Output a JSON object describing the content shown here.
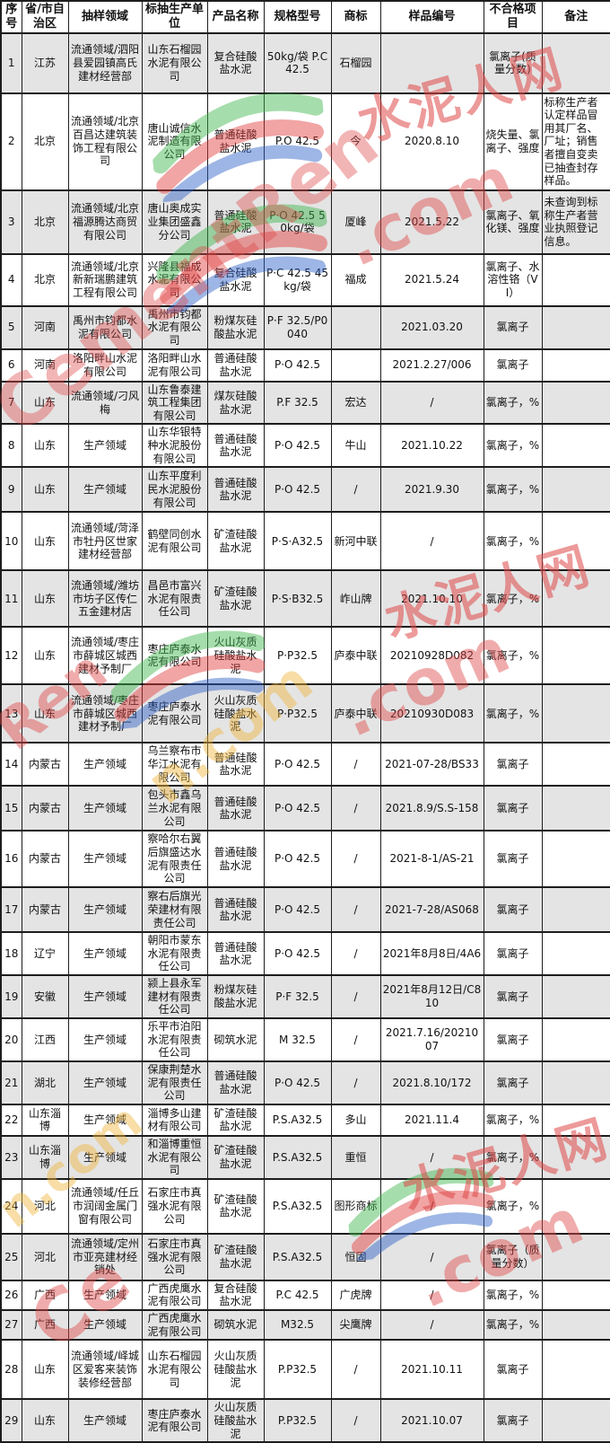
{
  "table": {
    "columns": [
      "序号",
      "省/市自治区",
      "抽样领域",
      "标抽生产单位",
      "产品名称",
      "规格型号",
      "商标",
      "样品编号",
      "不合格项目",
      "备注"
    ],
    "rows": [
      {
        "no": "1",
        "province": "江苏",
        "field": "流通领域/泗阳县爱园镇高氏建材经营部",
        "producer": "山东石榴园水泥有限公司",
        "product": "复合硅酸盐水泥",
        "spec": "50kg/袋 P.C42.5",
        "brand": "石榴园",
        "sample": "",
        "defect": "氯离子(质量分数)",
        "note": ""
      },
      {
        "no": "2",
        "province": "北京",
        "field": "流通领域/北京百昌达建筑装饰工程有限公司",
        "producer": "唐山诚信水泥制造有限公司",
        "product": "普通硅酸盐水泥",
        "spec": "P.O 42.5",
        "brand": "今",
        "sample": "2020.8.10",
        "defect": "烧失量、氯离子、强度",
        "note": "标称生产者认定样品冒用其厂名、厂址；销售者擅自变卖已抽查封存样品。"
      },
      {
        "no": "3",
        "province": "北京",
        "field": "流通领域/北京福源腾达商贸有限公司",
        "producer": "唐山奥成实业集团盛鑫分公司",
        "product": "普通硅酸盐水泥",
        "spec": "P·O 42.5 50kg/袋",
        "brand": "厦峰",
        "sample": "2021.5.22",
        "defect": "氯离子、氧化镁、强度",
        "note": "未查询到标称生产者营业执照登记信息。"
      },
      {
        "no": "4",
        "province": "北京",
        "field": "流通领域/北京新新瑞鹏建筑工程有限公司",
        "producer": "兴隆县福成水泥有限公司",
        "product": "复合硅酸盐水泥",
        "spec": "P·C 42.5 45kg/袋",
        "brand": "福成",
        "sample": "2021.5.24",
        "defect": "氯离子、水溶性铬（VI）",
        "note": ""
      },
      {
        "no": "5",
        "province": "河南",
        "field": "禹州市钧都水泥有限公司",
        "producer": "禹州市钧都水泥有限公司",
        "product": "粉煤灰硅酸盐水泥",
        "spec": "P·F 32.5/P0040",
        "brand": "",
        "sample": "2021.03.20",
        "defect": "氯离子",
        "note": ""
      },
      {
        "no": "6",
        "province": "河南",
        "field": "洛阳畔山水泥有限公司",
        "producer": "洛阳畔山水泥有限公司",
        "product": "普通硅酸盐水泥",
        "spec": "P·O 42.5",
        "brand": "",
        "sample": "2021.2.27/006",
        "defect": "氯离子",
        "note": ""
      },
      {
        "no": "7",
        "province": "山东",
        "field": "流通领域/刁风梅",
        "producer": "山东鲁泰建筑工程集团有限公司",
        "product": "煤灰硅酸盐水泥",
        "spec": "P.F 32.5",
        "brand": "宏达",
        "sample": "/",
        "defect": "氯离子，%",
        "note": ""
      },
      {
        "no": "8",
        "province": "山东",
        "field": "生产领域",
        "producer": "山东华银特种水泥股份有限公司",
        "product": "普通硅酸盐水泥",
        "spec": "P·O 42.5",
        "brand": "牛山",
        "sample": "2021.10.22",
        "defect": "氯离子，%",
        "note": ""
      },
      {
        "no": "9",
        "province": "山东",
        "field": "生产领域",
        "producer": "山东平度利民水泥股份有限公司",
        "product": "普通硅酸盐水泥",
        "spec": "P·O 42.5",
        "brand": "/",
        "sample": "2021.9.30",
        "defect": "氯离子，%",
        "note": ""
      },
      {
        "no": "10",
        "province": "山东",
        "field": "流通领域/菏泽市牡丹区世家建材经营部",
        "producer": "鹤壁同创水泥有限公司",
        "product": "矿渣硅酸盐水泥",
        "spec": "P·S·A32.5",
        "brand": "新河中联",
        "sample": "/",
        "defect": "氯离子，%",
        "note": ""
      },
      {
        "no": "11",
        "province": "山东",
        "field": "流通领域/潍坊市坊子区传仁五金建材店",
        "producer": "昌邑市富兴水泥有限责任公司",
        "product": "矿渣硅酸盐水泥",
        "spec": "P·S·B32.5",
        "brand": "岞山牌",
        "sample": "2021.10.10",
        "defect": "氯离子，%",
        "note": ""
      },
      {
        "no": "12",
        "province": "山东",
        "field": "流通领域/枣庄市薛城区城西建材予制厂",
        "producer": "枣庄庐泰水泥有限公司",
        "product": "火山灰质硅酸盐水泥",
        "spec": "P·P32.5",
        "brand": "庐泰中联",
        "sample": "20210928D082",
        "defect": "氯离子，%",
        "note": ""
      },
      {
        "no": "13",
        "province": "山东",
        "field": "流通领域/枣庄市薛城区城西建材予制厂",
        "producer": "枣庄庐泰水泥有限公司",
        "product": "火山灰质硅酸盐水泥",
        "spec": "P·P32.5",
        "brand": "庐泰中联",
        "sample": "20210930D083",
        "defect": "氯离子，%",
        "note": ""
      },
      {
        "no": "14",
        "province": "内蒙古",
        "field": "生产领域",
        "producer": "乌兰察布市华江水泥有限公司",
        "product": "普通硅酸盐水泥",
        "spec": "P·O 42.5",
        "brand": "/",
        "sample": "2021-07-28/BS33",
        "defect": "氯离子",
        "note": ""
      },
      {
        "no": "15",
        "province": "内蒙古",
        "field": "生产领域",
        "producer": "包头市鑫乌兰水泥有限公司",
        "product": "普通硅酸盐水泥",
        "spec": "P·O 42.5",
        "brand": "/",
        "sample": "2021.8.9/S.S-158",
        "defect": "氯离子",
        "note": ""
      },
      {
        "no": "16",
        "province": "内蒙古",
        "field": "生产领域",
        "producer": "察哈尔右翼后旗盛达水泥有限责任公司",
        "product": "普通硅酸盐水泥",
        "spec": "P·O 42.5",
        "brand": "/",
        "sample": "2021-8-1/AS-21",
        "defect": "氯离子",
        "note": ""
      },
      {
        "no": "17",
        "province": "内蒙古",
        "field": "生产领域",
        "producer": "察右后旗光荣建材有限责任公司",
        "product": "普通硅酸盐水泥",
        "spec": "P·O 42.5",
        "brand": "/",
        "sample": "2021-7-28/AS068",
        "defect": "氯离子",
        "note": ""
      },
      {
        "no": "18",
        "province": "辽宁",
        "field": "生产领域",
        "producer": "朝阳市蒙东水泥有限责任公司",
        "product": "普通硅酸盐水泥",
        "spec": "P·O 42.5",
        "brand": "/",
        "sample": "2021年8月8日/4A6",
        "defect": "氯离子",
        "note": ""
      },
      {
        "no": "19",
        "province": "安徽",
        "field": "生产领域",
        "producer": "颍上县永军建材有限责任公司",
        "product": "粉煤灰硅酸盐水泥",
        "spec": "P·F 32.5",
        "brand": "/",
        "sample": "2021年8月12日/C810",
        "defect": "氯离子",
        "note": ""
      },
      {
        "no": "20",
        "province": "江西",
        "field": "生产领域",
        "producer": "乐平市泊阳水泥有限责任公司",
        "product": "砌筑水泥",
        "spec": "M 32.5",
        "brand": "/",
        "sample": "2021.7.16/2021007",
        "defect": "氯离子",
        "note": ""
      },
      {
        "no": "21",
        "province": "湖北",
        "field": "生产领域",
        "producer": "保康荆楚水泥有限责任公司",
        "product": "普通硅酸盐水泥",
        "spec": "P·O 42.5",
        "brand": "/",
        "sample": "2021.8.10/172",
        "defect": "氯离子",
        "note": ""
      },
      {
        "no": "22",
        "province": "山东淄博",
        "field": "生产领域",
        "producer": "淄博多山建材有限公司",
        "product": "矿渣硅酸盐水泥",
        "spec": "P.S.A32.5",
        "brand": "多山",
        "sample": "2021.11.4",
        "defect": "氯离子，%",
        "note": ""
      },
      {
        "no": "23",
        "province": "山东淄博",
        "field": "生产领域",
        "producer": "和淄博重恒水泥有限公司",
        "product": "矿渣硅酸盐水泥",
        "spec": "P.S.A32.5",
        "brand": "重恒",
        "sample": "/",
        "defect": "氯离子，%",
        "note": ""
      },
      {
        "no": "24",
        "province": "河北",
        "field": "流通领域/任丘市润阔金属门窗有限公司",
        "producer": "石家庄市真强水泥有限公司",
        "product": "矿渣硅酸盐水泥",
        "spec": "P.S.A32.5",
        "brand": "图形商标",
        "sample": "/",
        "defect": "氯离子，%",
        "note": ""
      },
      {
        "no": "25",
        "province": "河北",
        "field": "流通领域/定州市亚亮建材经销处",
        "producer": "石家庄市真强水泥有限公司",
        "product": "矿渣硅酸盐水泥",
        "spec": "P.S.A32.5",
        "brand": "恒固",
        "sample": "/",
        "defect": "氯离子（质量分数）",
        "note": ""
      },
      {
        "no": "26",
        "province": "广西",
        "field": "生产领域",
        "producer": "广西虎鹰水泥有限公司",
        "product": "复合硅酸盐水泥",
        "spec": "P.C 42.5",
        "brand": "广虎牌",
        "sample": "/",
        "defect": "氯离子，%",
        "note": ""
      },
      {
        "no": "27",
        "province": "广西",
        "field": "生产领域",
        "producer": "广西虎鹰水泥有限公司",
        "product": "砌筑水泥",
        "spec": "M32.5",
        "brand": "尖鹰牌",
        "sample": "/",
        "defect": "氯离子，%",
        "note": ""
      },
      {
        "no": "28",
        "province": "山东",
        "field": "流通领域/峄城区爱客来装饰装修经营部",
        "producer": "山东石榴园水泥有限公司",
        "product": "火山灰质硅酸盐水泥",
        "spec": "P.P32.5",
        "brand": "/",
        "sample": "2021.10.11",
        "defect": "氯离子",
        "note": ""
      },
      {
        "no": "29",
        "province": "山东",
        "field": "生产领域",
        "producer": "枣庄庐泰水泥有限公司",
        "product": "火山灰质硅酸盐水泥",
        "spec": "P.P32.5",
        "brand": "/",
        "sample": "2021.10.07",
        "defect": "氯离子",
        "note": ""
      }
    ]
  },
  "watermark": {
    "site_cn": "水泥人网",
    "site_en": "CementRen",
    "site_en_frag_ren": "Ren",
    "site_en_frag_ce": "Ce",
    "domain_suffix": ".com",
    "orange_frag": "n.com",
    "red": "#e04848",
    "orange": "#f0b43c",
    "logo_green": "#3cb54a",
    "logo_red": "#e23a3a",
    "logo_blue": "#2b5fc7"
  },
  "colors": {
    "row_shade": "#e4e4e4",
    "border": "#1d1d1d",
    "text": "#111111"
  }
}
